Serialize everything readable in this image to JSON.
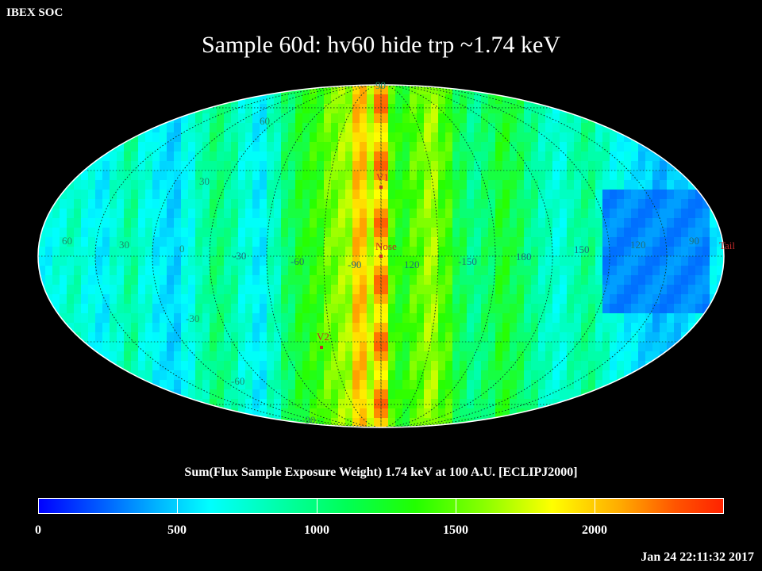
{
  "header": {
    "org": "IBEX SOC",
    "title": "Sample 60d: hv60 hide trp ~1.74 keV"
  },
  "colorbar": {
    "label": "Sum(Flux Sample Exposure Weight)  1.74 keV at 100 A.U. [ECLIPJ2000]",
    "ticks": [
      "0",
      "500",
      "1000",
      "1500",
      "2000"
    ],
    "range": [
      0,
      2470
    ],
    "colors": [
      "#0000ff",
      "#00ffff",
      "#22ff00",
      "#ffff00",
      "#ff2200"
    ]
  },
  "timestamp": "Jan 24 22:11:32 2017",
  "map": {
    "projection": "Mollweide ellipse",
    "lat_labels": [
      "90",
      "60",
      "30",
      "-30",
      "-60",
      "-90"
    ],
    "lon_labels": [
      "60",
      "30",
      "0",
      "-30",
      "-60",
      "-90",
      "120",
      "-150",
      "180",
      "150",
      "120",
      "90"
    ],
    "markers": [
      {
        "name": "Nose",
        "lon": "center",
        "lat": 0
      },
      {
        "name": "V1",
        "lat": 34
      },
      {
        "name": "V2",
        "lat": -30
      },
      {
        "name": "Tail",
        "lat": 0
      }
    ]
  }
}
